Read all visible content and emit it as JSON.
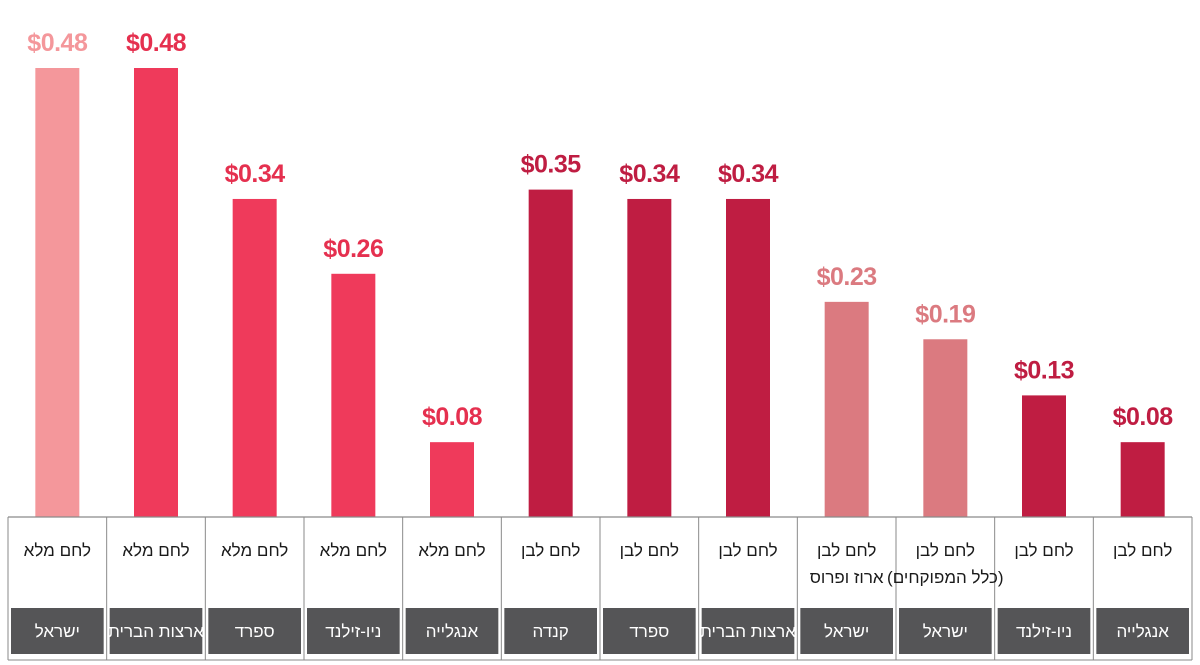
{
  "chart_data": {
    "type": "bar",
    "title": "",
    "xlabel": "",
    "ylabel": "",
    "ylim": [
      0,
      0.48
    ],
    "grid": false,
    "categories": [
      {
        "product": "לחם מלא",
        "product_line2": "",
        "country": "ישראל"
      },
      {
        "product": "לחם מלא",
        "product_line2": "",
        "country": "ארצות הברית"
      },
      {
        "product": "לחם מלא",
        "product_line2": "",
        "country": "ספרד"
      },
      {
        "product": "לחם מלא",
        "product_line2": "",
        "country": "ניו-זילנד"
      },
      {
        "product": "לחם מלא",
        "product_line2": "",
        "country": "אנגלייה"
      },
      {
        "product": "לחם לבן",
        "product_line2": "",
        "country": "קנדה"
      },
      {
        "product": "לחם לבן",
        "product_line2": "",
        "country": "ספרד"
      },
      {
        "product": "לחם לבן",
        "product_line2": "",
        "country": "ארצות הברית"
      },
      {
        "product": "לחם לבן",
        "product_line2": "ארוז ופרוס",
        "country": "ישראל"
      },
      {
        "product": "לחם לבן",
        "product_line2": "(כלל המפוקחים)",
        "country": "ישראל"
      },
      {
        "product": "לחם לבן",
        "product_line2": "",
        "country": "ניו-זילנד"
      },
      {
        "product": "לחם לבן",
        "product_line2": "",
        "country": "אנגלייה"
      }
    ],
    "values": [
      0.48,
      0.48,
      0.34,
      0.26,
      0.08,
      0.35,
      0.34,
      0.34,
      0.23,
      0.19,
      0.13,
      0.08
    ],
    "value_labels": [
      "$0.48",
      "$0.48",
      "$0.34",
      "$0.26",
      "$0.08",
      "$0.35",
      "$0.34",
      "$0.34",
      "$0.23",
      "$0.19",
      "$0.13",
      "$0.08"
    ],
    "bar_colors": [
      "#f4979b",
      "#ef3a5b",
      "#ef3a5b",
      "#ef3a5b",
      "#ef3a5b",
      "#bf1d42",
      "#bf1d42",
      "#bf1d42",
      "#db7a80",
      "#db7a80",
      "#bf1d42",
      "#bf1d42"
    ],
    "label_colors": [
      "#f4979b",
      "#e5304f",
      "#e5304f",
      "#e5304f",
      "#e5304f",
      "#bf1d42",
      "#bf1d42",
      "#bf1d42",
      "#db7a80",
      "#db7a80",
      "#bf1d42",
      "#bf1d42"
    ],
    "country_box_color": "#555557",
    "border_color": "#8a8a8a"
  }
}
